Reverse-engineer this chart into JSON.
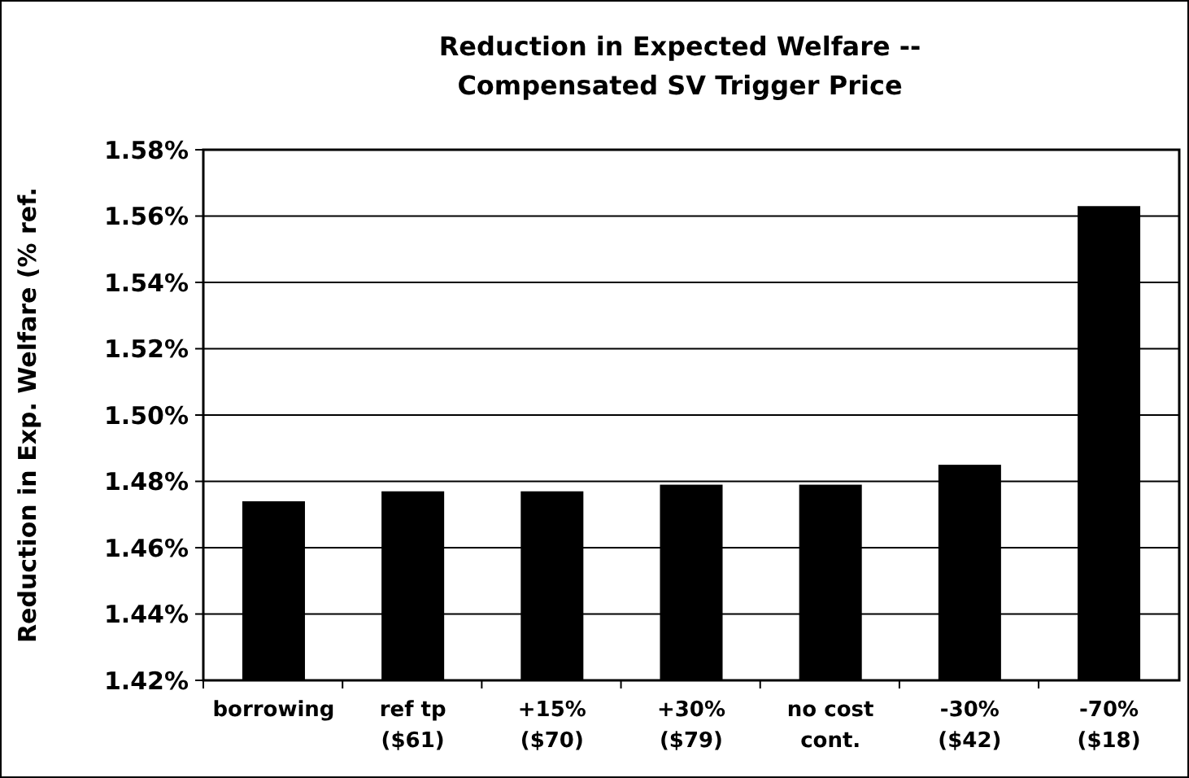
{
  "chart_data": {
    "type": "bar",
    "title": "Reduction in Expected Welfare --\nCompensated SV Trigger Price",
    "ylabel": "Reduction in Exp. Welfare (% ref.",
    "categories": [
      "borrowing",
      "ref tp\n($61)",
      "+15%\n($70)",
      "+30%\n($79)",
      "no cost\ncont.",
      "-30%\n($42)",
      "-70%\n($18)"
    ],
    "values": [
      1.474,
      1.477,
      1.477,
      1.479,
      1.479,
      1.485,
      1.563
    ],
    "color": "#000000",
    "ylim": [
      1.42,
      1.58
    ],
    "yticks": [
      {
        "value": 1.42,
        "label": "1.42%"
      },
      {
        "value": 1.44,
        "label": "1.44%"
      },
      {
        "value": 1.46,
        "label": "1.46%"
      },
      {
        "value": 1.48,
        "label": "1.48%"
      },
      {
        "value": 1.5,
        "label": "1.50%"
      },
      {
        "value": 1.52,
        "label": "1.52%"
      },
      {
        "value": 1.54,
        "label": "1.54%"
      },
      {
        "value": 1.56,
        "label": "1.56%"
      },
      {
        "value": 1.58,
        "label": "1.58%"
      }
    ],
    "grid": "y"
  }
}
